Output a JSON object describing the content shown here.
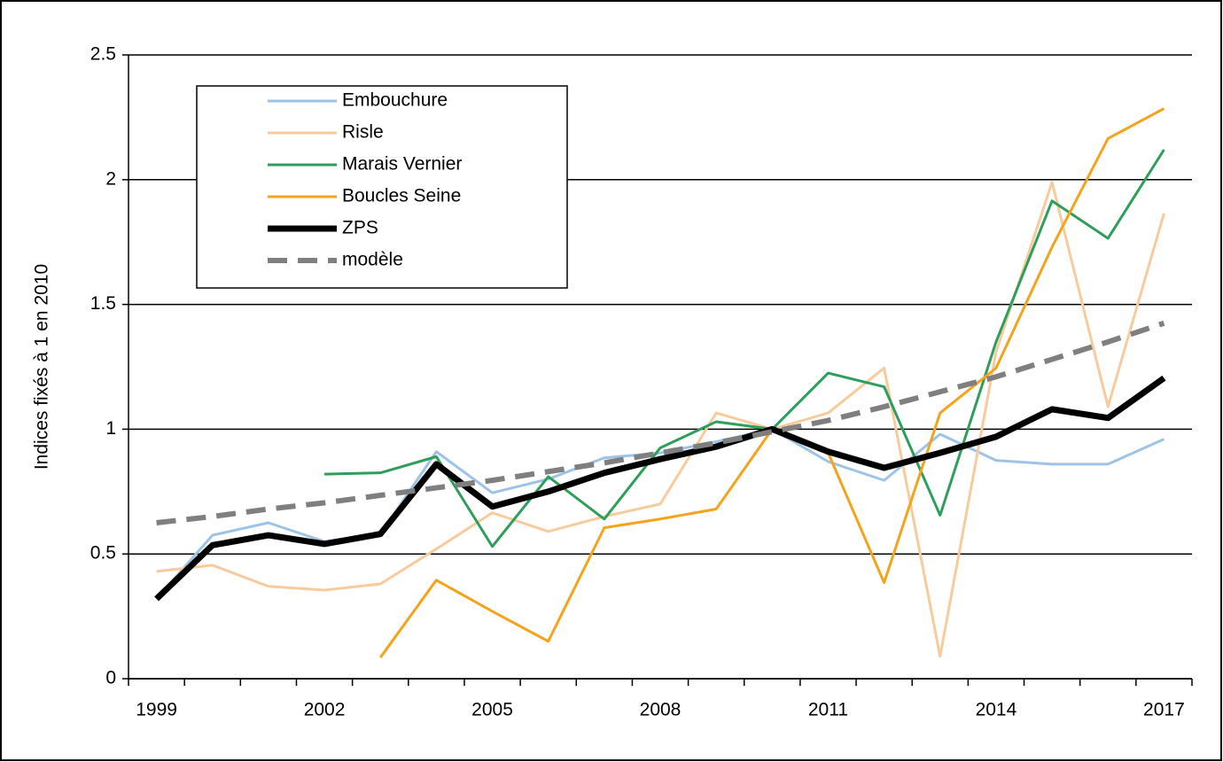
{
  "chart_data": {
    "type": "line",
    "ylabel": "Indices fixés à 1 en 2010",
    "categories": [
      "1999",
      null,
      null,
      "2002",
      null,
      null,
      "2005",
      null,
      null,
      "2008",
      null,
      null,
      "2011",
      null,
      null,
      "2014",
      null,
      null,
      "2017"
    ],
    "series": [
      {
        "name": "Embouchure",
        "color": "#9dc3e6",
        "line_style": "solid",
        "values": [
          0.32,
          0.575,
          0.625,
          0.55,
          0.58,
          0.91,
          0.745,
          0.8,
          0.885,
          0.905,
          0.95,
          1.0,
          0.87,
          0.795,
          0.98,
          0.875,
          0.86,
          0.86,
          0.96
        ]
      },
      {
        "name": "Risle",
        "color": "#f8cb9c",
        "line_style": "solid",
        "values": [
          0.43,
          0.455,
          0.37,
          0.355,
          0.38,
          0.52,
          0.665,
          0.59,
          0.65,
          0.7,
          1.065,
          1.0,
          1.065,
          1.245,
          0.09,
          1.31,
          1.99,
          1.09,
          1.865
        ]
      },
      {
        "name": "Marais Vernier",
        "color": "#2e9e5b",
        "line_style": "solid",
        "values": [
          null,
          null,
          null,
          0.82,
          0.825,
          0.89,
          0.53,
          0.81,
          0.64,
          0.925,
          1.03,
          1.0,
          1.225,
          1.17,
          0.655,
          1.35,
          1.915,
          1.765,
          2.12
        ]
      },
      {
        "name": "Boucles Seine",
        "color": "#f5a31b",
        "line_style": "solid",
        "values": [
          null,
          null,
          null,
          null,
          0.085,
          0.395,
          0.27,
          0.15,
          0.605,
          0.64,
          0.68,
          1.0,
          0.905,
          0.385,
          1.065,
          1.245,
          1.73,
          2.165,
          2.285
        ]
      },
      {
        "name": "ZPS",
        "color": "#000000",
        "line_style": "bold",
        "values": [
          0.32,
          0.535,
          0.575,
          0.54,
          0.58,
          0.86,
          0.69,
          0.75,
          0.825,
          0.88,
          0.93,
          1.0,
          0.91,
          0.845,
          0.905,
          0.97,
          1.08,
          1.045,
          1.205
        ]
      },
      {
        "name": "modèle",
        "color": "#7f7f7f",
        "line_style": "dashed",
        "values": [
          0.625,
          0.65,
          0.68,
          0.705,
          0.735,
          0.765,
          0.795,
          0.83,
          0.865,
          0.905,
          0.945,
          0.99,
          1.035,
          1.09,
          1.15,
          1.21,
          1.28,
          1.35,
          1.425
        ]
      }
    ],
    "ylim": [
      0,
      2.5
    ],
    "yticks": [
      0,
      0.5,
      1,
      1.5,
      2,
      2.5
    ],
    "grid": true,
    "legend": "upper left"
  }
}
